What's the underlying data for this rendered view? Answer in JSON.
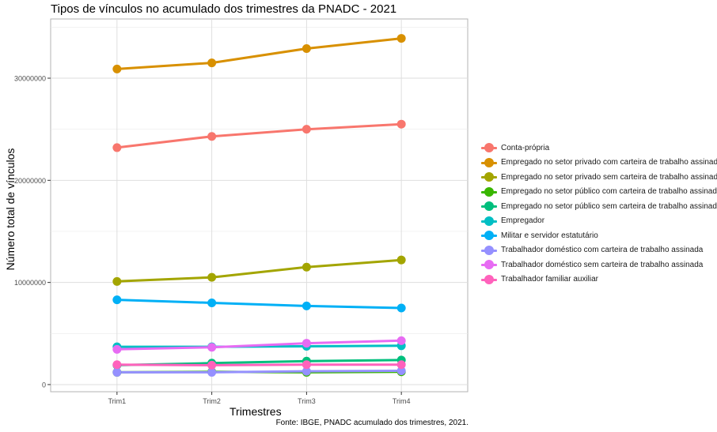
{
  "chart_data": {
    "type": "line",
    "title": "Tipos de vínculos no acumulado dos trimestres da PNADC - 2021",
    "xlabel": "Trimestres",
    "ylabel": "Número total de vínculos",
    "caption": "Fonte: IBGE, PNADC acumulado dos trimestres, 2021.",
    "categories": [
      "Trim1",
      "Trim2",
      "Trim3",
      "Trim4"
    ],
    "ylim": [
      -700000,
      35800000
    ],
    "yticks": [
      0,
      10000000,
      20000000,
      30000000
    ],
    "ytick_labels": [
      "0",
      "10000000",
      "20000000",
      "30000000"
    ],
    "grid": true,
    "legend_position": "right",
    "series": [
      {
        "name": "Conta-própria",
        "color": "#F8766D",
        "values": [
          23200000,
          24300000,
          25000000,
          25500000
        ]
      },
      {
        "name": "Empregado no setor privado com carteira de trabalho assinada",
        "color": "#D89000",
        "values": [
          30900000,
          31500000,
          32900000,
          33900000
        ]
      },
      {
        "name": "Empregado no setor privado sem carteira de trabalho assinada",
        "color": "#A3A500",
        "values": [
          10100000,
          10500000,
          11500000,
          12200000
        ]
      },
      {
        "name": "Empregado no setor público com carteira de trabalho assinada",
        "color": "#39B600",
        "values": [
          1200000,
          1250000,
          1200000,
          1250000
        ]
      },
      {
        "name": "Empregado no setor público sem carteira de trabalho assinada",
        "color": "#00BF7D",
        "values": [
          1900000,
          2100000,
          2300000,
          2400000
        ]
      },
      {
        "name": "Empregador",
        "color": "#00BFC4",
        "values": [
          3700000,
          3700000,
          3750000,
          3800000
        ]
      },
      {
        "name": "Militar e servidor estatutário",
        "color": "#00B0F6",
        "values": [
          8300000,
          8000000,
          7700000,
          7500000
        ]
      },
      {
        "name": "Trabalhador doméstico com carteira de trabalho assinada",
        "color": "#9590FF",
        "values": [
          1200000,
          1200000,
          1300000,
          1350000
        ]
      },
      {
        "name": "Trabalhador doméstico sem carteira de trabalho assinada",
        "color": "#E76BF3",
        "values": [
          3450000,
          3650000,
          4050000,
          4300000
        ]
      },
      {
        "name": "Trabalhador familiar auxiliar",
        "color": "#FF62BC",
        "values": [
          1950000,
          1900000,
          1950000,
          1950000
        ]
      }
    ]
  }
}
